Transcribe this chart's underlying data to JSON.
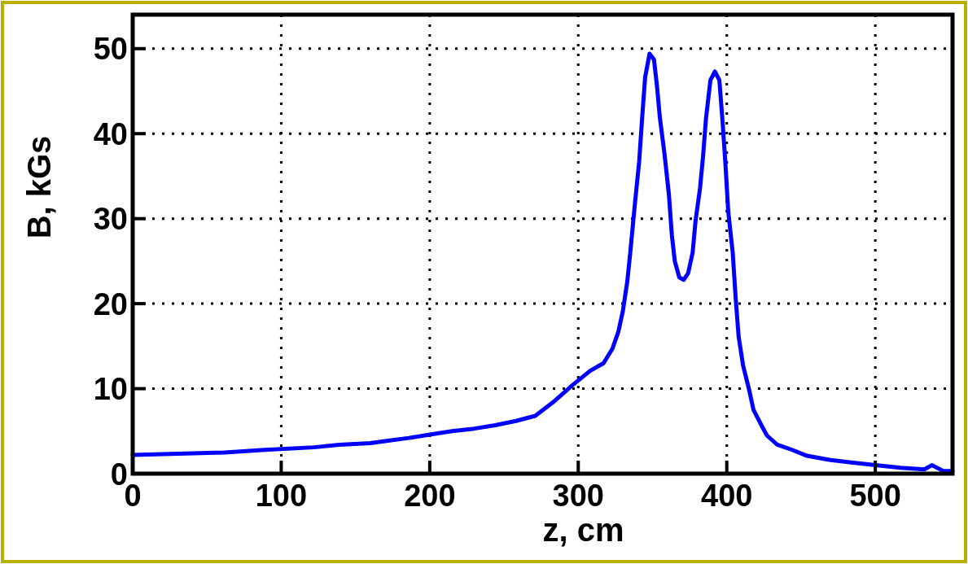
{
  "chart_data": {
    "type": "line",
    "xlabel": "z, cm",
    "ylabel": "B, kGs",
    "xlim": [
      0,
      552
    ],
    "ylim": [
      0,
      54
    ],
    "xticks": [
      0,
      100,
      200,
      300,
      400,
      500
    ],
    "yticks": [
      0,
      10,
      20,
      30,
      40,
      50
    ],
    "grid": true,
    "line_style": "solid",
    "marker": "none",
    "series": [
      {
        "color": "#0000ff",
        "x": [
          0,
          62,
          89,
          122,
          139,
          160,
          173,
          186,
          200,
          215,
          230,
          244,
          258,
          271,
          283,
          296,
          308,
          317,
          323,
          327,
          330,
          333,
          335,
          338,
          341,
          343,
          345,
          348,
          351,
          353,
          355,
          358,
          361,
          363,
          365,
          368,
          371,
          374,
          377,
          379,
          382,
          384,
          386,
          389,
          392,
          395,
          397,
          399,
          401,
          404,
          406,
          408,
          411,
          415,
          418,
          423,
          427,
          434,
          444,
          454,
          470,
          485,
          500,
          517,
          533,
          538,
          546,
          552
        ],
        "values": [
          2.2,
          2.5,
          2.8,
          3.1,
          3.4,
          3.6,
          3.9,
          4.2,
          4.6,
          5.0,
          5.3,
          5.7,
          6.2,
          6.8,
          8.4,
          10.4,
          12.1,
          13.0,
          14.7,
          16.7,
          19.1,
          22.6,
          26.0,
          31.5,
          36.7,
          41.8,
          46.6,
          49.4,
          48.7,
          45.6,
          41.8,
          37.7,
          32.9,
          28.1,
          25.0,
          23.1,
          22.8,
          23.6,
          26.0,
          29.8,
          33.6,
          37.3,
          41.8,
          46.3,
          47.3,
          46.3,
          41.8,
          36.7,
          30.8,
          26.0,
          20.6,
          16.1,
          12.7,
          9.9,
          7.5,
          5.8,
          4.5,
          3.4,
          2.8,
          2.1,
          1.6,
          1.3,
          1.0,
          0.7,
          0.5,
          1.0,
          0.3,
          0.3
        ]
      }
    ]
  }
}
